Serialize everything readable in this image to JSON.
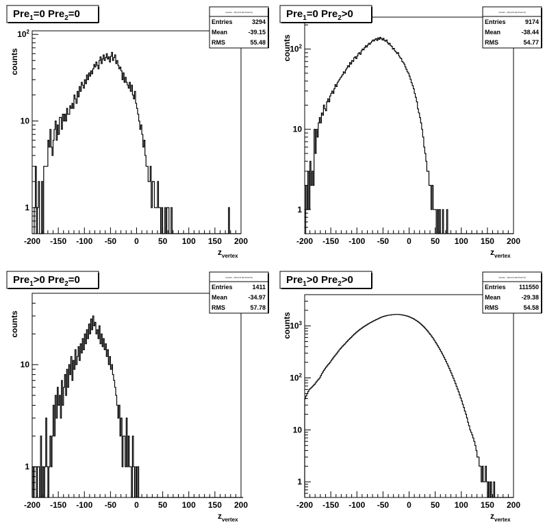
{
  "chart_data": [
    {
      "type": "histogram",
      "title_parts": {
        "a": "Pre",
        "a_sub": "1",
        "b": "=0  Pre",
        "b_sub": "2",
        "c": "=0"
      },
      "xlabel": "z",
      "xlabel_sub": "vertex",
      "ylabel": "counts",
      "xlim": [
        -200,
        200
      ],
      "ylim": [
        0.5,
        110
      ],
      "log_y": true,
      "xticks": [
        "-200",
        "-150",
        "-100",
        "-50",
        "0",
        "50",
        "100",
        "150",
        "200"
      ],
      "yticks": [
        {
          "v": 1,
          "label": "1"
        },
        {
          "v": 10,
          "label": "10"
        },
        {
          "v": 100,
          "label": "10",
          "sup": "2"
        }
      ],
      "stats": {
        "header": "zvertex - (Pre1=0 && Pre2=0)",
        "rows": [
          [
            "Entries",
            "3294"
          ],
          [
            "Mean",
            "-39.15"
          ],
          [
            "RMS",
            "55.48"
          ]
        ]
      },
      "bin_width": 2,
      "values": [
        0.5,
        0.5,
        1,
        3,
        0.5,
        1,
        2,
        0.5,
        0.5,
        2,
        0.5,
        3,
        3,
        3,
        3,
        6,
        5,
        8,
        5,
        4,
        6,
        8,
        10,
        6,
        9,
        7,
        11,
        11,
        8,
        12,
        10,
        12,
        10,
        14,
        12,
        12,
        15,
        14,
        16,
        14,
        20,
        18,
        16,
        22,
        19,
        25,
        22,
        28,
        26,
        24,
        30,
        27,
        34,
        30,
        36,
        33,
        38,
        35,
        40,
        45,
        42,
        48,
        44,
        40,
        50,
        55,
        46,
        52,
        58,
        50,
        54,
        60,
        52,
        55,
        48,
        56,
        62,
        50,
        54,
        58,
        46,
        50,
        44,
        40,
        42,
        38,
        30,
        36,
        28,
        32,
        28,
        26,
        24,
        28,
        22,
        26,
        20,
        18,
        22,
        16,
        14,
        12,
        10,
        8,
        9,
        7,
        5,
        6,
        4,
        3,
        3,
        2,
        2,
        3,
        1,
        2,
        2,
        1,
        1,
        1,
        2,
        1,
        1,
        0.5,
        1,
        0.5,
        0.5,
        1,
        0.5,
        1,
        1,
        0.5,
        0.5,
        1,
        0.5,
        0.5,
        0.5,
        0.5,
        0.5,
        0.5,
        0.5,
        0.5,
        0.5,
        0.5,
        0.5,
        0.5,
        0.5,
        0.5,
        0.5,
        0.5,
        0.5,
        0.5,
        0.5,
        0.5,
        0.5,
        0.5,
        0.5,
        0.5,
        0.5,
        0.5,
        0.5,
        0.5,
        0.5,
        0.5,
        0.5,
        0.5,
        0.5,
        0.5,
        0.5,
        0.5,
        0.5,
        0.5,
        0.5,
        0.5,
        0.5,
        0.5,
        0.5,
        0.5,
        0.5,
        0.5,
        0.5,
        0.5,
        0.5,
        0.5,
        0.5,
        0.5,
        0.5,
        0.5,
        1,
        0.5,
        0.5,
        0.5,
        0.5,
        0.5
      ]
    },
    {
      "type": "histogram",
      "title_parts": {
        "a": "Pre",
        "a_sub": "1",
        "b": "=0  Pre",
        "b_sub": "2",
        "c": ">0"
      },
      "xlabel": "z",
      "xlabel_sub": "vertex",
      "ylabel": "counts",
      "xlim": [
        -200,
        200
      ],
      "ylim": [
        0.5,
        250
      ],
      "log_y": true,
      "xticks": [
        "-200",
        "-150",
        "-100",
        "-50",
        "0",
        "50",
        "100",
        "150",
        "200"
      ],
      "yticks": [
        {
          "v": 1,
          "label": "1"
        },
        {
          "v": 10,
          "label": "10"
        },
        {
          "v": 100,
          "label": "10",
          "sup": "2"
        }
      ],
      "stats": {
        "header": "zvertex - (Pre1=0 && Pre2>0)",
        "rows": [
          [
            "Entries",
            "9174"
          ],
          [
            "Mean",
            "-38.44"
          ],
          [
            "RMS",
            "54.77"
          ]
        ]
      },
      "bin_width": 2,
      "values": [
        0.5,
        2,
        1,
        3,
        1,
        4,
        2,
        3,
        2,
        10,
        5,
        10,
        8,
        12,
        14,
        12,
        16,
        15,
        20,
        18,
        17,
        22,
        24,
        22,
        26,
        28,
        30,
        28,
        32,
        36,
        34,
        38,
        40,
        42,
        44,
        46,
        48,
        52,
        50,
        55,
        58,
        62,
        60,
        68,
        65,
        72,
        70,
        78,
        80,
        76,
        82,
        88,
        90,
        86,
        95,
        100,
        98,
        104,
        110,
        106,
        112,
        118,
        115,
        120,
        125,
        130,
        126,
        132,
        135,
        128,
        138,
        132,
        140,
        135,
        130,
        136,
        128,
        125,
        130,
        120,
        115,
        118,
        110,
        108,
        100,
        102,
        95,
        92,
        88,
        90,
        82,
        78,
        76,
        70,
        68,
        65,
        60,
        56,
        52,
        50,
        46,
        42,
        38,
        35,
        32,
        28,
        25,
        22,
        18,
        16,
        14,
        12,
        10,
        8,
        6,
        5,
        4,
        3,
        3,
        2,
        2,
        1,
        2,
        1,
        1,
        1,
        0.5,
        1,
        0.5,
        1,
        0.5,
        0.5,
        1,
        0.5,
        0.5,
        0.5,
        1,
        0.5,
        0.5,
        0.5,
        0.5,
        0.5,
        0.5,
        0.5,
        0.5,
        0.5,
        0.5,
        0.5,
        0.5,
        0.5,
        0.5,
        0.5,
        0.5,
        0.5,
        0.5,
        0.5,
        0.5,
        0.5,
        0.5,
        0.5,
        0.5,
        0.5,
        0.5,
        0.5,
        0.5,
        0.5,
        0.5,
        0.5,
        0.5,
        0.5,
        0.5,
        0.5,
        0.5,
        0.5,
        0.5,
        0.5,
        0.5,
        0.5,
        0.5,
        0.5,
        0.5,
        0.5,
        0.5,
        0.5,
        0.5,
        0.5,
        0.5,
        0.5,
        0.5,
        0.5,
        0.5,
        0.5,
        0.5,
        0.5,
        0.5,
        0.5,
        0.5
      ]
    },
    {
      "type": "histogram",
      "title_parts": {
        "a": "Pre",
        "a_sub": "1",
        "b": ">0  Pre",
        "b_sub": "2",
        "c": "=0"
      },
      "xlabel": "z",
      "xlabel_sub": "vertex",
      "ylabel": "counts",
      "xlim": [
        -200,
        200
      ],
      "ylim": [
        0.5,
        50
      ],
      "log_y": true,
      "xticks": [
        "-200",
        "-150",
        "-100",
        "-50",
        "0",
        "50",
        "100",
        "150",
        "200"
      ],
      "yticks": [
        {
          "v": 1,
          "label": "1"
        },
        {
          "v": 10,
          "label": "10"
        }
      ],
      "stats": {
        "header": "zvertex - (Pre1>0 && Pre2=0)",
        "rows": [
          [
            "Entries",
            "1411"
          ],
          [
            "Mean",
            "-34.97"
          ],
          [
            "RMS",
            "57.78"
          ]
        ]
      },
      "bin_width": 2,
      "values": [
        1,
        0.5,
        1,
        1,
        0.5,
        1,
        1,
        0.5,
        2,
        0.5,
        1,
        0.5,
        1,
        3,
        1,
        0.5,
        1,
        2,
        1,
        2,
        4,
        2,
        5,
        3,
        6,
        4,
        5,
        3,
        7,
        4,
        6,
        8,
        5,
        9,
        6,
        10,
        8,
        12,
        7,
        11,
        9,
        14,
        10,
        12,
        15,
        11,
        16,
        13,
        18,
        14,
        20,
        16,
        22,
        18,
        25,
        20,
        28,
        22,
        30,
        24,
        26,
        20,
        22,
        18,
        24,
        16,
        20,
        15,
        18,
        14,
        16,
        12,
        14,
        10,
        12,
        9,
        10,
        8,
        7,
        6,
        5,
        4,
        3,
        4,
        2,
        3,
        1,
        2,
        2,
        1,
        3,
        1,
        2,
        1,
        1,
        0.5,
        2,
        1,
        0.5,
        1,
        0.5,
        1,
        0.5,
        0.5,
        0.5,
        0.5,
        0.5,
        0.5,
        0.5,
        0.5,
        0.5,
        0.5,
        0.5,
        0.5,
        0.5,
        0.5,
        0.5,
        0.5,
        0.5,
        0.5,
        0.5,
        0.5,
        0.5,
        0.5,
        0.5,
        0.5,
        0.5,
        0.5,
        0.5,
        0.5,
        0.5,
        0.5,
        0.5,
        0.5,
        0.5,
        0.5,
        0.5,
        0.5,
        0.5,
        0.5,
        0.5,
        0.5,
        0.5,
        0.5,
        0.5,
        0.5,
        0.5,
        0.5,
        0.5,
        0.5,
        0.5,
        0.5,
        0.5,
        0.5,
        0.5,
        0.5,
        0.5,
        0.5,
        0.5,
        0.5,
        0.5,
        0.5,
        0.5,
        0.5,
        0.5,
        0.5,
        0.5,
        0.5,
        0.5,
        0.5,
        0.5,
        0.5,
        0.5,
        0.5,
        0.5,
        0.5,
        0.5,
        0.5,
        0.5,
        0.5,
        0.5,
        0.5,
        0.5,
        0.5,
        0.5,
        0.5,
        0.5,
        0.5,
        0.5,
        0.5,
        0.5,
        0.5,
        0.5,
        0.5,
        0.5,
        0.5,
        0.5,
        0.5,
        0.5,
        0.5,
        0.5,
        0.5
      ]
    },
    {
      "type": "histogram",
      "title_parts": {
        "a": "Pre",
        "a_sub": "1",
        "b": ">0  Pre",
        "b_sub": "2",
        "c": ">0"
      },
      "xlabel": "z",
      "xlabel_sub": "vertex",
      "ylabel": "counts",
      "xlim": [
        -200,
        200
      ],
      "ylim": [
        0.5,
        4000
      ],
      "log_y": true,
      "xticks": [
        "-200",
        "-150",
        "-100",
        "-50",
        "0",
        "50",
        "100",
        "150",
        "200"
      ],
      "yticks": [
        {
          "v": 1,
          "label": "1"
        },
        {
          "v": 10,
          "label": "10"
        },
        {
          "v": 100,
          "label": "10",
          "sup": "2"
        },
        {
          "v": 1000,
          "label": "10",
          "sup": "3"
        }
      ],
      "stats": {
        "header": "zvertex - (Pre1>0 && Pre2>0)",
        "rows": [
          [
            "Entries",
            "111550"
          ],
          [
            "Mean",
            "-29.38"
          ],
          [
            "RMS",
            "54.58"
          ]
        ]
      },
      "bin_width": 2,
      "values": [
        40,
        45,
        50,
        55,
        60,
        62,
        65,
        68,
        72,
        75,
        80,
        85,
        90,
        95,
        100,
        110,
        120,
        130,
        140,
        150,
        160,
        170,
        180,
        190,
        200,
        215,
        230,
        245,
        260,
        275,
        290,
        310,
        330,
        350,
        370,
        390,
        410,
        430,
        450,
        475,
        500,
        525,
        550,
        575,
        600,
        630,
        660,
        690,
        720,
        750,
        780,
        810,
        840,
        870,
        900,
        930,
        960,
        990,
        1020,
        1050,
        1080,
        1110,
        1140,
        1170,
        1200,
        1230,
        1260,
        1290,
        1320,
        1350,
        1380,
        1410,
        1440,
        1470,
        1500,
        1520,
        1540,
        1560,
        1580,
        1600,
        1610,
        1620,
        1630,
        1640,
        1650,
        1655,
        1660,
        1665,
        1670,
        1665,
        1660,
        1650,
        1640,
        1630,
        1615,
        1600,
        1580,
        1560,
        1540,
        1515,
        1490,
        1460,
        1430,
        1400,
        1365,
        1330,
        1290,
        1250,
        1210,
        1170,
        1125,
        1080,
        1035,
        990,
        945,
        900,
        855,
        810,
        765,
        720,
        680,
        640,
        600,
        560,
        520,
        485,
        450,
        415,
        385,
        355,
        325,
        300,
        275,
        250,
        228,
        207,
        188,
        170,
        153,
        138,
        124,
        111,
        99,
        88,
        78,
        69,
        61,
        54,
        47,
        41,
        36,
        31,
        27,
        23,
        20,
        17,
        14,
        12,
        10,
        9,
        8,
        7,
        6,
        5,
        4,
        3,
        3,
        2,
        2,
        1,
        2,
        1,
        1,
        2,
        1,
        0.5,
        1,
        0.5,
        1,
        0.5,
        0.5,
        1,
        0.5,
        0.5,
        0.5,
        0.5,
        0.5,
        0.5,
        0.5,
        0.5,
        0.5,
        0.5,
        0.5,
        0.5,
        0.5,
        0.5,
        0.5,
        0.5,
        0.5,
        0.5
      ]
    }
  ]
}
